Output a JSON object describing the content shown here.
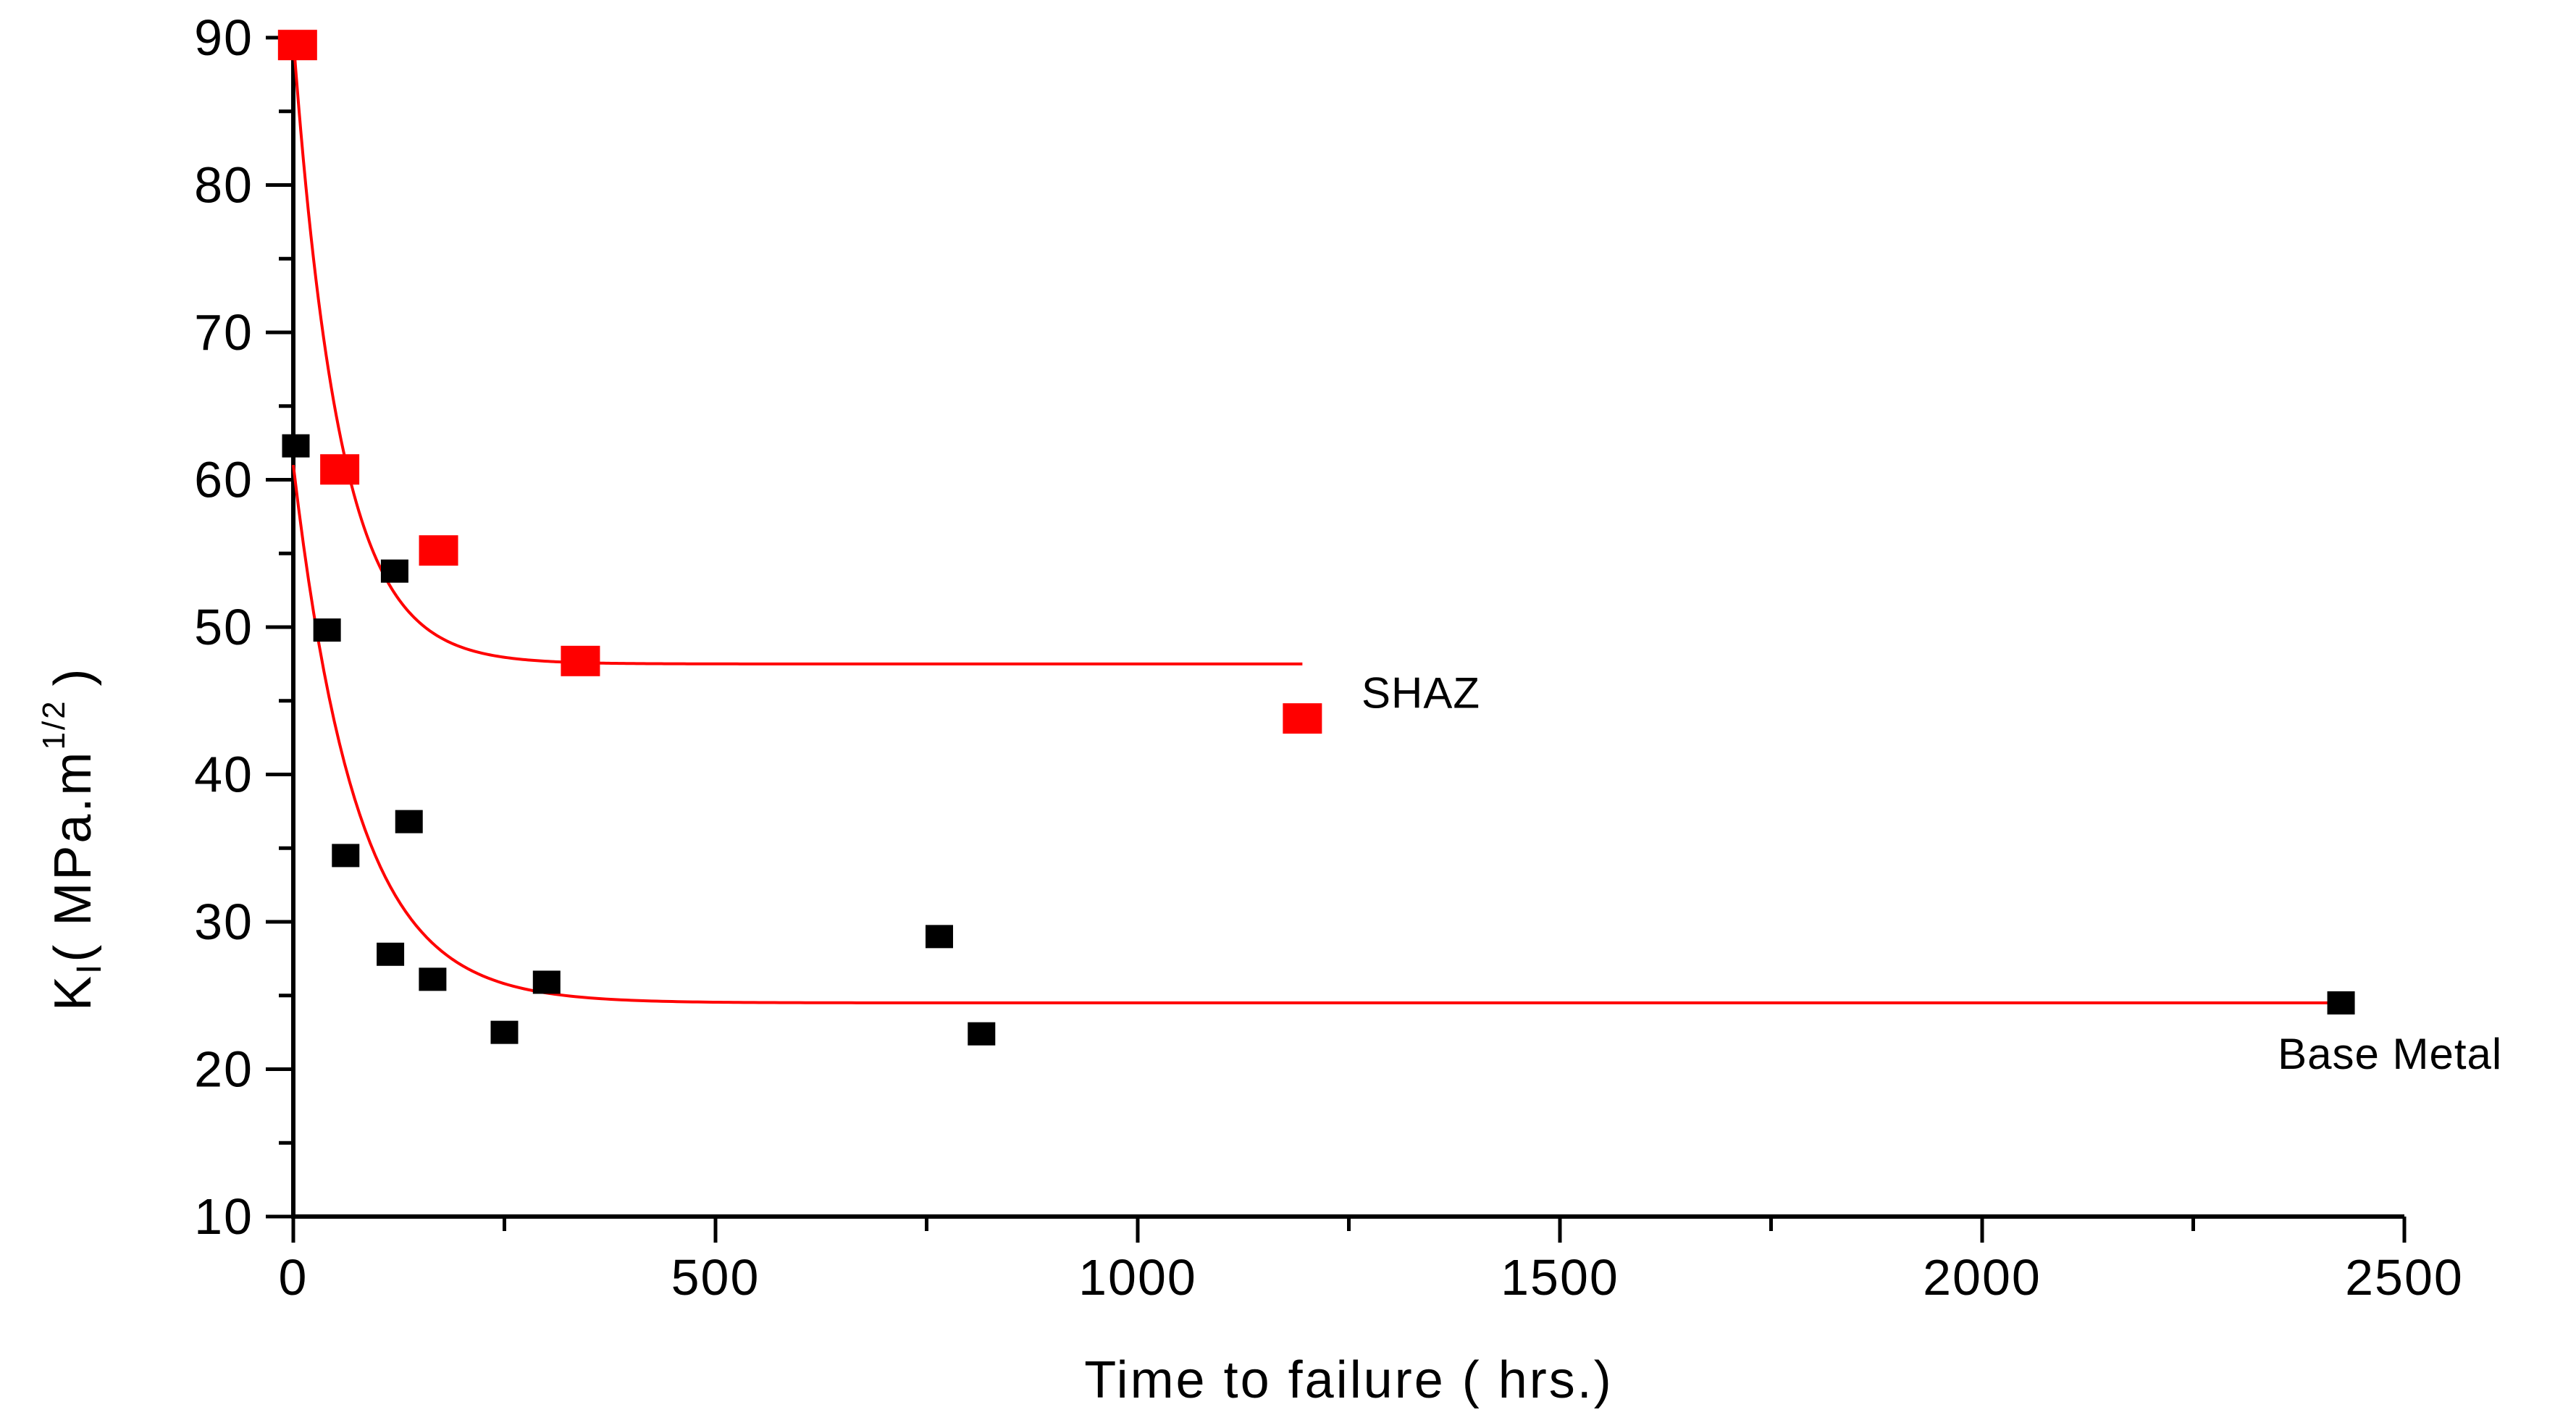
{
  "chart_data": {
    "type": "scatter",
    "title": "",
    "xlabel": "Time to failure ( hrs.)",
    "ylabel": {
      "main": "K",
      "sub": "I",
      "open": "( MPa.m",
      "sup": "1/2",
      "close": ")"
    },
    "xlim": [
      0,
      2500
    ],
    "ylim": [
      10,
      90
    ],
    "x_ticks": [
      0,
      500,
      1000,
      1500,
      2000,
      2500
    ],
    "x_minor_step": 250,
    "y_ticks": [
      10,
      20,
      30,
      40,
      50,
      60,
      70,
      80,
      90
    ],
    "y_minor_step": 5,
    "grid": false,
    "series": [
      {
        "name": "SHAZ",
        "color": "#ff0000",
        "marker": "square",
        "points": [
          {
            "x": 5,
            "y": 89.5
          },
          {
            "x": 55,
            "y": 60.7
          },
          {
            "x": 172,
            "y": 55.2
          },
          {
            "x": 340,
            "y": 47.7
          },
          {
            "x": 1195,
            "y": 43.8
          }
        ],
        "fit": {
          "a": 47.5,
          "b": 42.5,
          "tau": 55,
          "x_start": 0,
          "x_end": 1195
        }
      },
      {
        "name": "Base Metal",
        "color": "#000000",
        "marker": "square",
        "points": [
          {
            "x": 3,
            "y": 62.3
          },
          {
            "x": 40,
            "y": 49.8
          },
          {
            "x": 62,
            "y": 34.5
          },
          {
            "x": 120,
            "y": 53.8
          },
          {
            "x": 115,
            "y": 27.8
          },
          {
            "x": 137,
            "y": 36.8
          },
          {
            "x": 165,
            "y": 26.1
          },
          {
            "x": 250,
            "y": 22.5
          },
          {
            "x": 300,
            "y": 25.9
          },
          {
            "x": 765,
            "y": 29.0
          },
          {
            "x": 815,
            "y": 22.4
          },
          {
            "x": 2425,
            "y": 24.5
          }
        ],
        "fit": {
          "a": 24.5,
          "b": 36.5,
          "tau": 75,
          "x_start": 0,
          "x_end": 2425
        }
      }
    ],
    "fit_color": "#ff0000",
    "series_labels": [
      {
        "text": "SHAZ",
        "anchor_x": 1265,
        "anchor_y": 45.5
      },
      {
        "text": "Base Metal",
        "anchor_x": 2350,
        "anchor_y": 21.0
      }
    ]
  }
}
